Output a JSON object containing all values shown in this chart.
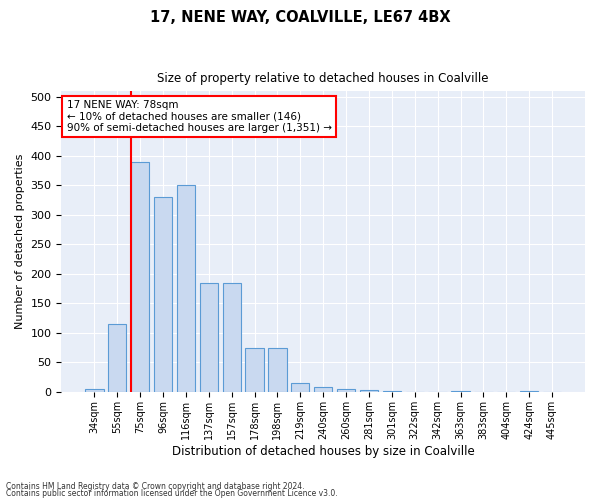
{
  "title1": "17, NENE WAY, COALVILLE, LE67 4BX",
  "title2": "Size of property relative to detached houses in Coalville",
  "xlabel": "Distribution of detached houses by size in Coalville",
  "ylabel": "Number of detached properties",
  "categories": [
    "34sqm",
    "55sqm",
    "75sqm",
    "96sqm",
    "116sqm",
    "137sqm",
    "157sqm",
    "178sqm",
    "198sqm",
    "219sqm",
    "240sqm",
    "260sqm",
    "281sqm",
    "301sqm",
    "322sqm",
    "342sqm",
    "363sqm",
    "383sqm",
    "404sqm",
    "424sqm",
    "445sqm"
  ],
  "values": [
    5,
    115,
    390,
    330,
    350,
    185,
    185,
    75,
    75,
    15,
    8,
    5,
    3,
    1,
    0,
    0,
    1,
    0,
    0,
    1,
    0
  ],
  "bar_color": "#c9d9f0",
  "bar_edge_color": "#5b9bd5",
  "red_line_index": 2,
  "annotation_line1": "17 NENE WAY: 78sqm",
  "annotation_line2": "← 10% of detached houses are smaller (146)",
  "annotation_line3": "90% of semi-detached houses are larger (1,351) →",
  "annotation_box_color": "white",
  "annotation_border_color": "red",
  "ylim": [
    0,
    510
  ],
  "yticks": [
    0,
    50,
    100,
    150,
    200,
    250,
    300,
    350,
    400,
    450,
    500
  ],
  "footer1": "Contains HM Land Registry data © Crown copyright and database right 2024.",
  "footer2": "Contains public sector information licensed under the Open Government Licence v3.0.",
  "background_color": "#e8eef8"
}
